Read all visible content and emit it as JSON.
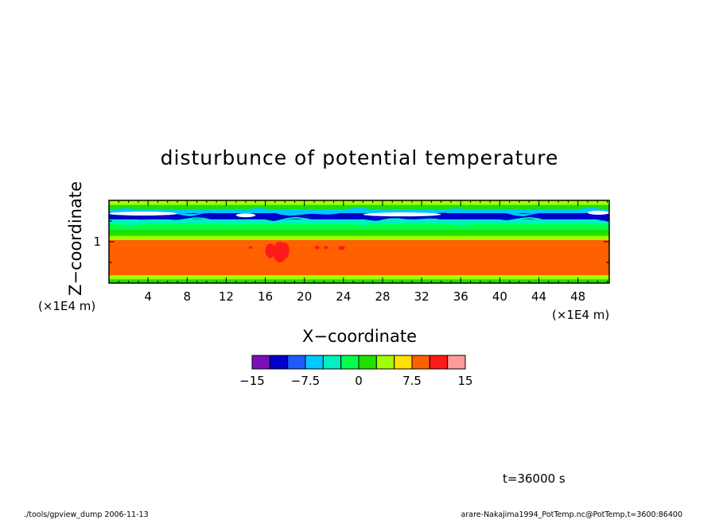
{
  "chart_data": {
    "type": "heatmap",
    "title": "disturbunce of potential temperature",
    "xlabel": "X−coordinate",
    "ylabel": "Z−coordinate",
    "x_unit": "(×1E4 m)",
    "y_unit": "(×1E4 m)",
    "xlim": [
      0,
      51.2
    ],
    "ylim": [
      0,
      2.0
    ],
    "x_ticks": [
      "4",
      "8",
      "12",
      "16",
      "20",
      "24",
      "28",
      "32",
      "36",
      "40",
      "44",
      "48"
    ],
    "x_tick_values": [
      4,
      8,
      12,
      16,
      20,
      24,
      28,
      32,
      36,
      40,
      44,
      48
    ],
    "y_ticks": [
      "1"
    ],
    "y_tick_values": [
      1
    ],
    "colorbar": {
      "levels": [
        -15,
        -12.5,
        -10,
        -7.5,
        -5,
        -2.5,
        0,
        2.5,
        5,
        7.5,
        10,
        12.5,
        15
      ],
      "labels": [
        "−15",
        "−7.5",
        "0",
        "7.5",
        "15"
      ],
      "label_values": [
        -15,
        -7.5,
        0,
        7.5,
        15
      ],
      "colors": [
        "#7a10b8",
        "#0000c8",
        "#1e5aff",
        "#00c8ff",
        "#00f0c0",
        "#00ff50",
        "#20e000",
        "#a0ff00",
        "#ffe000",
        "#ff6000",
        "#ff1a1a",
        "#ff9a9a"
      ]
    },
    "fields": [
      {
        "z": [
          0.0,
          0.1
        ],
        "value": 2
      },
      {
        "z": [
          0.1,
          0.2
        ],
        "value": 4
      },
      {
        "z": [
          0.2,
          1.05
        ],
        "value": 8
      },
      {
        "z": [
          1.05,
          1.15
        ],
        "value": 4
      },
      {
        "z": [
          1.15,
          1.3
        ],
        "value": 2
      },
      {
        "z": [
          1.3,
          1.45
        ],
        "value": -1
      },
      {
        "z": [
          1.45,
          1.55
        ],
        "value": -4
      },
      {
        "z": [
          1.55,
          1.7
        ],
        "value": -12
      },
      {
        "z": [
          1.7,
          1.8
        ],
        "value": -6
      },
      {
        "z": [
          1.8,
          1.9
        ],
        "value": 1
      },
      {
        "z": [
          1.9,
          2.0
        ],
        "value": 3
      }
    ],
    "warm_blobs": [
      {
        "x": 16.5,
        "z": 0.78,
        "rx": 0.5,
        "rz": 0.18,
        "value": 11
      },
      {
        "x": 17.5,
        "z": 0.75,
        "rx": 0.7,
        "rz": 0.25,
        "value": 11
      },
      {
        "x": 18.0,
        "z": 0.78,
        "rx": 0.45,
        "rz": 0.2,
        "value": 11
      },
      {
        "x": 21.3,
        "z": 0.86,
        "rx": 0.25,
        "rz": 0.04,
        "value": 11
      },
      {
        "x": 22.2,
        "z": 0.86,
        "rx": 0.2,
        "rz": 0.04,
        "value": 11
      },
      {
        "x": 23.8,
        "z": 0.85,
        "rx": 0.35,
        "rz": 0.05,
        "value": 11
      },
      {
        "x": 14.5,
        "z": 0.86,
        "rx": 0.2,
        "rz": 0.03,
        "value": 11
      }
    ],
    "cold_streaks": [
      {
        "x": [
          0,
          7
        ],
        "z": 1.68,
        "value": 15
      },
      {
        "x": [
          13,
          15
        ],
        "z": 1.64,
        "value": 15
      },
      {
        "x": [
          26,
          34
        ],
        "z": 1.66,
        "value": 15
      },
      {
        "x": [
          49,
          51.2
        ],
        "z": 1.7,
        "value": 15
      }
    ]
  },
  "annotations": {
    "time_label": "t=36000 s",
    "footer_left": "./tools/gpview_dump  2006-11-13",
    "footer_right": "arare-Nakajima1994_PotTemp.nc@PotTemp,t=3600:86400"
  }
}
